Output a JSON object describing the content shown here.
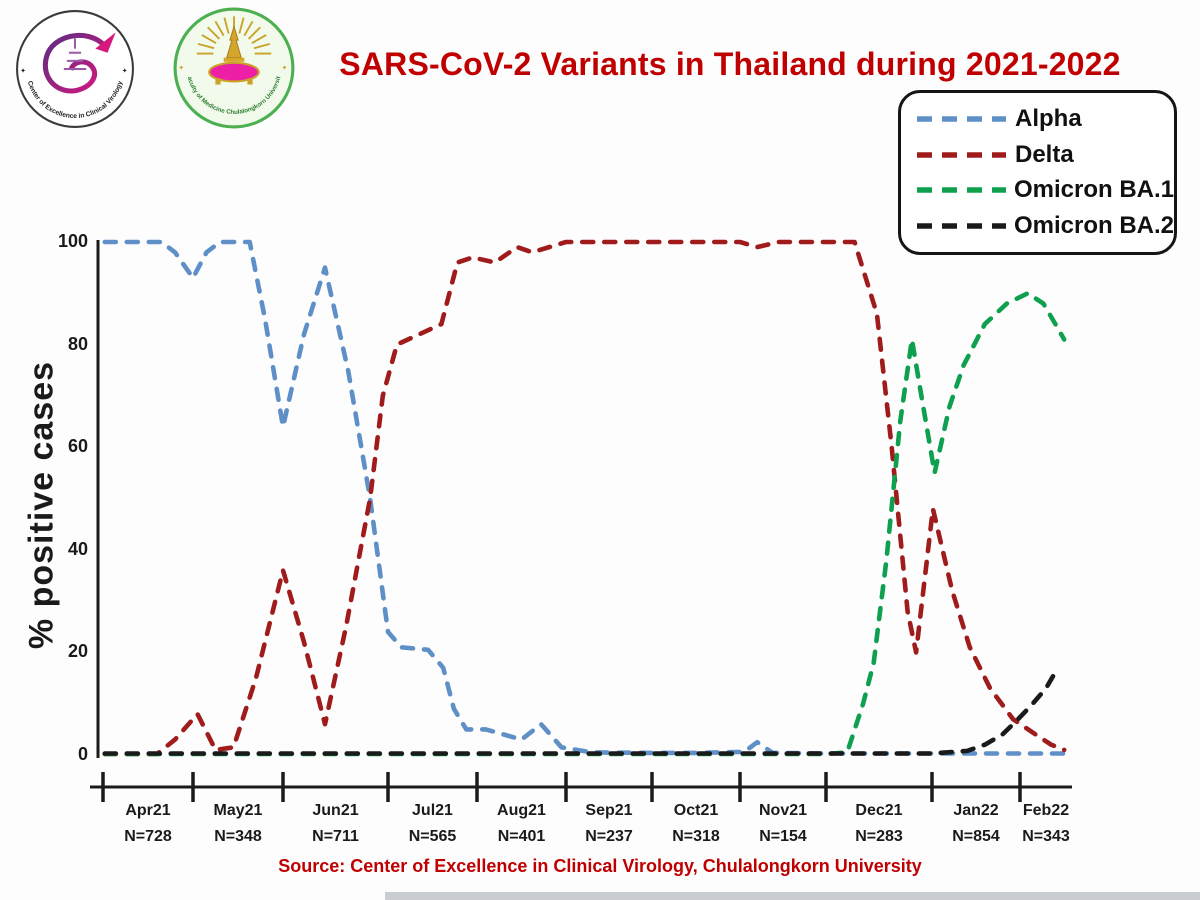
{
  "header": {
    "title": "SARS-CoV-2 Variants in Thailand during 2021-2022",
    "title_color": "#C00000",
    "logos": [
      {
        "name": "center-of-excellence-clinical-virology-logo",
        "ring_text": "Center of Excellence in Clinical Virology"
      },
      {
        "name": "faculty-of-medicine-chulalongkorn-logo",
        "ring_text": "Faculty of Medicine Chulalongkorn University"
      }
    ]
  },
  "legend": {
    "position": "top-right",
    "entries": [
      {
        "label": "Alpha",
        "color": "#5E8FC7"
      },
      {
        "label": "Delta",
        "color": "#A01B1B"
      },
      {
        "label": "Omicron BA.1",
        "color": "#0FA04F"
      },
      {
        "label": "Omicron BA.2",
        "color": "#1A1A1A"
      }
    ]
  },
  "chart_data": {
    "type": "line",
    "title": "SARS-CoV-2 Variants in Thailand during 2021-2022",
    "ylabel": "% positive cases",
    "xlabel": "",
    "ylim": [
      0,
      100
    ],
    "y_ticks": [
      0,
      20,
      40,
      60,
      80,
      100
    ],
    "grid": false,
    "line_style": "dashed",
    "legend_position": "top-right",
    "x_categories": [
      {
        "month": "Apr21",
        "n": "N=728"
      },
      {
        "month": "May21",
        "n": "N=348"
      },
      {
        "month": "Jun21",
        "n": "N=711"
      },
      {
        "month": "Jul21",
        "n": "N=565"
      },
      {
        "month": "Aug21",
        "n": "N=401"
      },
      {
        "month": "Sep21",
        "n": "N=237"
      },
      {
        "month": "Oct21",
        "n": "N=318"
      },
      {
        "month": "Nov21",
        "n": "N=154"
      },
      {
        "month": "Dec21",
        "n": "N=283"
      },
      {
        "month": "Jan22",
        "n": "N=854"
      },
      {
        "month": "Feb22",
        "n": "N=343"
      }
    ],
    "x_unit": "fractional month index (0 = start of Apr21 interval, 1 = start of May21, ...)",
    "series": [
      {
        "name": "Alpha",
        "color": "#5E8FC7",
        "points": [
          [
            0.02,
            100
          ],
          [
            0.4,
            100
          ],
          [
            0.65,
            100
          ],
          [
            0.8,
            98
          ],
          [
            1.0,
            93
          ],
          [
            1.15,
            98
          ],
          [
            1.3,
            100
          ],
          [
            1.63,
            100
          ],
          [
            1.8,
            85
          ],
          [
            2.0,
            64
          ],
          [
            2.2,
            82
          ],
          [
            2.4,
            95
          ],
          [
            2.62,
            75
          ],
          [
            2.83,
            50
          ],
          [
            3.0,
            24
          ],
          [
            3.15,
            21
          ],
          [
            3.45,
            20.5
          ],
          [
            3.62,
            17
          ],
          [
            3.74,
            9
          ],
          [
            3.88,
            5
          ],
          [
            4.1,
            5
          ],
          [
            4.3,
            4
          ],
          [
            4.5,
            3
          ],
          [
            4.72,
            6
          ],
          [
            4.95,
            1.5
          ],
          [
            5.3,
            0.5
          ],
          [
            6.0,
            0.4
          ],
          [
            6.5,
            0.4
          ],
          [
            7.05,
            0.6
          ],
          [
            7.2,
            2.5
          ],
          [
            7.38,
            0.4
          ],
          [
            8.0,
            0.3
          ],
          [
            9.0,
            0.3
          ],
          [
            10.0,
            0.3
          ],
          [
            10.85,
            0.3
          ]
        ]
      },
      {
        "name": "Delta",
        "color": "#A01B1B",
        "points": [
          [
            0.02,
            0.2
          ],
          [
            0.6,
            0.2
          ],
          [
            0.8,
            3
          ],
          [
            1.05,
            8
          ],
          [
            1.25,
            1
          ],
          [
            1.45,
            1.5
          ],
          [
            1.7,
            15
          ],
          [
            2.0,
            36
          ],
          [
            2.2,
            22
          ],
          [
            2.4,
            6
          ],
          [
            2.6,
            25
          ],
          [
            2.83,
            50
          ],
          [
            2.95,
            70
          ],
          [
            3.1,
            80
          ],
          [
            3.35,
            82
          ],
          [
            3.6,
            84
          ],
          [
            3.78,
            96
          ],
          [
            3.95,
            97
          ],
          [
            4.2,
            96
          ],
          [
            4.45,
            99
          ],
          [
            4.62,
            98
          ],
          [
            5.0,
            100
          ],
          [
            6.0,
            100
          ],
          [
            7.0,
            100
          ],
          [
            7.2,
            99
          ],
          [
            7.45,
            100
          ],
          [
            8.27,
            100
          ],
          [
            8.48,
            86
          ],
          [
            8.62,
            60
          ],
          [
            8.77,
            28
          ],
          [
            8.85,
            20
          ],
          [
            9.01,
            48
          ],
          [
            9.23,
            32
          ],
          [
            9.43,
            21
          ],
          [
            9.66,
            13
          ],
          [
            9.92,
            7
          ],
          [
            10.3,
            4
          ],
          [
            10.6,
            2
          ],
          [
            10.85,
            1
          ]
        ]
      },
      {
        "name": "Omicron BA.1",
        "color": "#0FA04F",
        "points": [
          [
            0.02,
            0.2
          ],
          [
            2.0,
            0.2
          ],
          [
            4.0,
            0.2
          ],
          [
            6.0,
            0.2
          ],
          [
            8.0,
            0.2
          ],
          [
            8.2,
            0.5
          ],
          [
            8.35,
            10
          ],
          [
            8.45,
            18
          ],
          [
            8.57,
            38
          ],
          [
            8.7,
            65
          ],
          [
            8.81,
            81
          ],
          [
            8.9,
            70
          ],
          [
            9.03,
            55
          ],
          [
            9.2,
            68
          ],
          [
            9.36,
            76
          ],
          [
            9.6,
            84
          ],
          [
            9.85,
            88
          ],
          [
            10.15,
            90
          ],
          [
            10.45,
            88
          ],
          [
            10.68,
            84
          ],
          [
            10.85,
            81
          ]
        ]
      },
      {
        "name": "Omicron BA.2",
        "color": "#1A1A1A",
        "points": [
          [
            0.02,
            0.3
          ],
          [
            1.0,
            0.3
          ],
          [
            2.0,
            0.3
          ],
          [
            3.0,
            0.3
          ],
          [
            4.0,
            0.3
          ],
          [
            5.0,
            0.3
          ],
          [
            6.0,
            0.3
          ],
          [
            7.0,
            0.3
          ],
          [
            8.0,
            0.3
          ],
          [
            9.0,
            0.3
          ],
          [
            9.4,
            0.8
          ],
          [
            9.6,
            2
          ],
          [
            9.8,
            4
          ],
          [
            9.95,
            6.5
          ],
          [
            10.2,
            9.5
          ],
          [
            10.5,
            13
          ],
          [
            10.7,
            16.5
          ]
        ]
      }
    ]
  },
  "source": {
    "text": "Source: Center of Excellence in Clinical Virology, Chulalongkorn University",
    "color": "#C00000"
  }
}
